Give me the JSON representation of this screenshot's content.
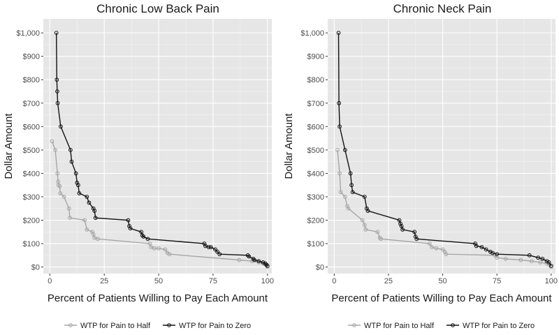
{
  "chart_data": {
    "type": "line",
    "ylabel": "Dollar Amount",
    "xlabel": "Percent of Patients Willing to Pay Each Amount",
    "x_ticks": [
      0,
      25,
      50,
      75,
      100
    ],
    "y_ticks": [
      0,
      100,
      200,
      300,
      400,
      500,
      600,
      700,
      800,
      900,
      1000
    ],
    "y_tick_labels": [
      "$0",
      "$100",
      "$200",
      "$300",
      "$400",
      "$500",
      "$600",
      "$700",
      "$800",
      "$900",
      "$1,000"
    ],
    "xlim": [
      -3,
      102
    ],
    "ylim": [
      -28,
      1060
    ],
    "grid": true,
    "legend_position": "bottom",
    "legend": [
      "WTP for Pain to Half",
      "WTP for Pain to Zero"
    ],
    "colors": {
      "half": "#a6a6a6",
      "zero": "#111111",
      "panel_bg": "#e6e6e6",
      "grid": "#ffffff"
    },
    "panels": [
      {
        "title": "Chronic Low Back Pain",
        "series": [
          {
            "name": "WTP for Pain to Half",
            "points": [
              [
                1,
                537
              ],
              [
                2.5,
                500
              ],
              [
                3.5,
                400
              ],
              [
                3.8,
                365
              ],
              [
                4,
                350
              ],
              [
                4.5,
                345
              ],
              [
                4.8,
                315
              ],
              [
                6.5,
                300
              ],
              [
                8.8,
                250
              ],
              [
                9.2,
                210
              ],
              [
                16,
                200
              ],
              [
                17,
                160
              ],
              [
                19.5,
                150
              ],
              [
                20,
                140
              ],
              [
                20.5,
                125
              ],
              [
                22,
                120
              ],
              [
                46,
                100
              ],
              [
                46.5,
                85
              ],
              [
                48,
                80
              ],
              [
                50,
                80
              ],
              [
                53,
                75
              ],
              [
                54,
                60
              ],
              [
                55,
                55
              ],
              [
                87,
                30
              ],
              [
                93,
                25
              ],
              [
                96,
                20
              ],
              [
                98,
                15
              ],
              [
                99,
                10
              ],
              [
                100,
                0
              ]
            ]
          },
          {
            "name": "WTP for Pain to Zero",
            "points": [
              [
                3,
                1000
              ],
              [
                3.2,
                800
              ],
              [
                3.4,
                750
              ],
              [
                3.6,
                700
              ],
              [
                5,
                600
              ],
              [
                9.5,
                500
              ],
              [
                10,
                450
              ],
              [
                12,
                400
              ],
              [
                12.5,
                360
              ],
              [
                13,
                350
              ],
              [
                13.5,
                315
              ],
              [
                17,
                300
              ],
              [
                18,
                275
              ],
              [
                20,
                250
              ],
              [
                20.5,
                240
              ],
              [
                21,
                210
              ],
              [
                36,
                200
              ],
              [
                36.5,
                175
              ],
              [
                37,
                165
              ],
              [
                42,
                150
              ],
              [
                42.5,
                135
              ],
              [
                43,
                130
              ],
              [
                45,
                120
              ],
              [
                71,
                100
              ],
              [
                71.5,
                90
              ],
              [
                73,
                85
              ],
              [
                74,
                85
              ],
              [
                76,
                75
              ],
              [
                77,
                65
              ],
              [
                78,
                55
              ],
              [
                91,
                50
              ],
              [
                91.5,
                45
              ],
              [
                93.5,
                35
              ],
              [
                94,
                30
              ],
              [
                96,
                25
              ],
              [
                98,
                20
              ],
              [
                99,
                15
              ],
              [
                99.5,
                10
              ],
              [
                100,
                5
              ]
            ]
          }
        ]
      },
      {
        "title": "Chronic Neck Pain",
        "series": [
          {
            "name": "WTP for Pain to Half",
            "points": [
              [
                1.5,
                500
              ],
              [
                2.5,
                400
              ],
              [
                3,
                320
              ],
              [
                5,
                300
              ],
              [
                6,
                260
              ],
              [
                6.5,
                250
              ],
              [
                13,
                200
              ],
              [
                14,
                180
              ],
              [
                14.5,
                160
              ],
              [
                20,
                150
              ],
              [
                21,
                125
              ],
              [
                21.5,
                120
              ],
              [
                44,
                100
              ],
              [
                45,
                85
              ],
              [
                47,
                80
              ],
              [
                50,
                75
              ],
              [
                51,
                65
              ],
              [
                51.5,
                55
              ],
              [
                74,
                50
              ],
              [
                75,
                40
              ],
              [
                79,
                35
              ],
              [
                86,
                30
              ],
              [
                91,
                25
              ],
              [
                95,
                20
              ],
              [
                98,
                15
              ],
              [
                99,
                10
              ],
              [
                100,
                0
              ]
            ]
          },
          {
            "name": "WTP for Pain to Zero",
            "points": [
              [
                2,
                1000
              ],
              [
                2.2,
                700
              ],
              [
                2.5,
                600
              ],
              [
                5,
                500
              ],
              [
                7.5,
                400
              ],
              [
                8,
                350
              ],
              [
                8.5,
                320
              ],
              [
                14,
                300
              ],
              [
                15,
                250
              ],
              [
                15.5,
                240
              ],
              [
                30,
                200
              ],
              [
                30.5,
                185
              ],
              [
                31,
                175
              ],
              [
                31.5,
                160
              ],
              [
                37,
                150
              ],
              [
                37.5,
                130
              ],
              [
                38,
                120
              ],
              [
                65,
                100
              ],
              [
                65.5,
                90
              ],
              [
                68,
                85
              ],
              [
                70,
                75
              ],
              [
                72,
                65
              ],
              [
                73,
                60
              ],
              [
                75,
                55
              ],
              [
                90,
                50
              ],
              [
                94,
                40
              ],
              [
                96,
                35
              ],
              [
                98,
                25
              ],
              [
                99,
                20
              ],
              [
                100,
                5
              ]
            ]
          }
        ]
      }
    ]
  }
}
